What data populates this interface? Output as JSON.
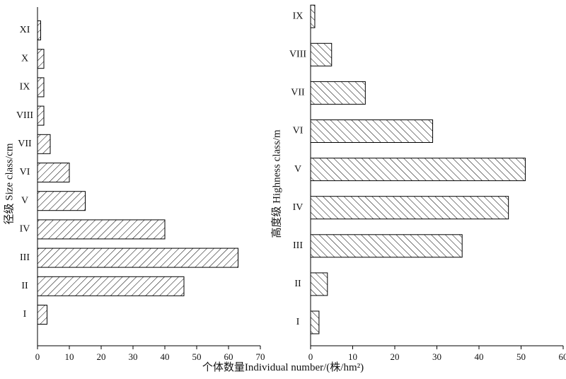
{
  "chart_data": [
    {
      "type": "bar",
      "orientation": "horizontal",
      "ylabel": "径级  Size class/cm",
      "xlabel": "",
      "xlim": [
        0,
        70
      ],
      "xticks": [
        0,
        10,
        20,
        30,
        40,
        50,
        60,
        70
      ],
      "categories": [
        "I",
        "II",
        "III",
        "IV",
        "V",
        "VI",
        "VII",
        "VIII",
        "IX",
        "X",
        "XI"
      ],
      "values": [
        3,
        46,
        63,
        40,
        15,
        10,
        4,
        2,
        2,
        2,
        1
      ],
      "pattern": "diagonal-hatch-right",
      "grid": false,
      "legend": "none"
    },
    {
      "type": "bar",
      "orientation": "horizontal",
      "ylabel": "高度级  Highness class/m",
      "xlabel": "",
      "xlim": [
        0,
        60
      ],
      "xticks": [
        0,
        10,
        20,
        30,
        40,
        50,
        60
      ],
      "categories": [
        "I",
        "II",
        "III",
        "IV",
        "V",
        "VI",
        "VII",
        "VIII",
        "IX"
      ],
      "values": [
        2,
        4,
        36,
        47,
        51,
        29,
        13,
        5,
        1
      ],
      "pattern": "diagonal-hatch-left",
      "grid": false,
      "legend": "none"
    }
  ],
  "shared_xlabel": "个体数量Individual number/(株/hm²)"
}
